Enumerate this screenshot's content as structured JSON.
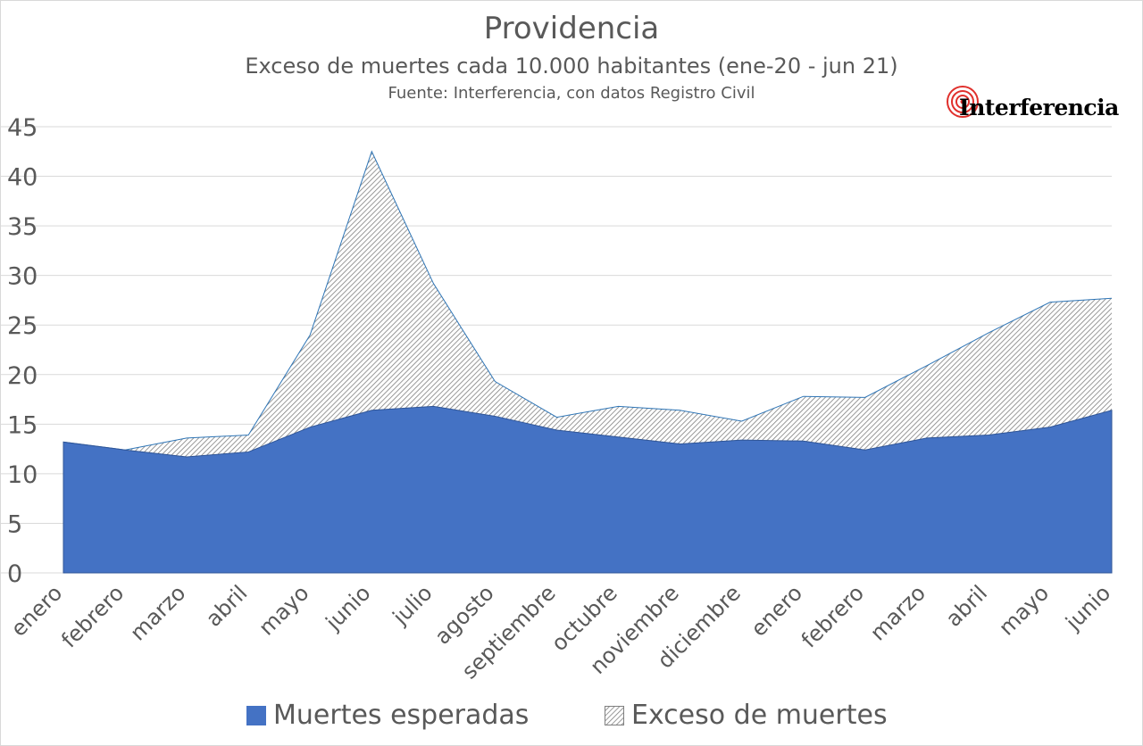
{
  "chart_data": {
    "type": "area",
    "title": "Providencia",
    "subtitle": "Exceso de muertes cada 10.000 habitantes (ene-20  - jun 21)",
    "source": "Fuente: Interferencia, con datos Registro Civil",
    "categories": [
      "enero",
      "febrero",
      "marzo",
      "abril",
      "mayo",
      "junio",
      "julio",
      "agosto",
      "septiembre",
      "octubre",
      "noviembre",
      "diciembre",
      "enero",
      "febrero",
      "marzo",
      "abril",
      "mayo",
      "junio"
    ],
    "series": [
      {
        "name": "Muertes esperadas",
        "color": "#4472C4",
        "values": [
          13.2,
          12.4,
          11.7,
          12.2,
          14.7,
          16.4,
          16.8,
          15.8,
          14.4,
          13.7,
          13.0,
          13.4,
          13.3,
          12.4,
          13.6,
          13.9,
          14.7,
          16.4
        ]
      },
      {
        "name": "Exceso de muertes",
        "color": "#595959",
        "pattern": "diagonal-hatch",
        "total_values": [
          13.2,
          12.4,
          13.6,
          13.9,
          24.0,
          42.5,
          29.2,
          19.3,
          15.7,
          16.8,
          16.4,
          15.3,
          17.8,
          17.7,
          20.9,
          24.2,
          27.3,
          27.7
        ]
      }
    ],
    "yticks": [
      "0",
      "5",
      "10",
      "15",
      "20",
      "25",
      "30",
      "35",
      "40",
      "45"
    ],
    "ylim": [
      0,
      45
    ],
    "grid": true,
    "legend_position": "bottom"
  },
  "logo": {
    "text": "Interferencia"
  }
}
